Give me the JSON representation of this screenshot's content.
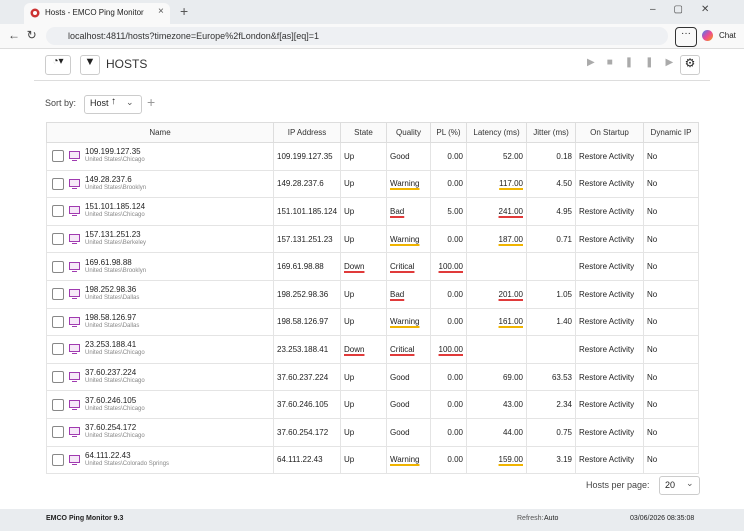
{
  "browser": {
    "tab_title": "Hosts - EMCO Ping Monitor",
    "url": "localhost:4811/hosts?timezone=Europe%2fLondon&f[as][eq]=1",
    "chat": "Chat"
  },
  "toolbar": {
    "title": "HOSTS"
  },
  "sort": {
    "label": "Sort by:",
    "field": "Host"
  },
  "table": {
    "headers": [
      "Name",
      "IP Address",
      "State",
      "Quality",
      "PL (%)",
      "Latency (ms)",
      "Jitter (ms)",
      "On Startup",
      "Dynamic IP"
    ],
    "rows": [
      {
        "name": "109.199.127.35",
        "location": "United States\\Chicago",
        "ip": "109.199.127.35",
        "state": "Up",
        "quality": "Good",
        "pl": "0.00",
        "latency": "52.00",
        "jitter": "0.18",
        "on_startup": "Restore Activity",
        "dynamic_ip": "No"
      },
      {
        "name": "149.28.237.6",
        "location": "United States\\Brooklyn",
        "ip": "149.28.237.6",
        "state": "Up",
        "quality": "Warning",
        "pl": "0.00",
        "latency": "117.00",
        "jitter": "4.50",
        "on_startup": "Restore Activity",
        "dynamic_ip": "No"
      },
      {
        "name": "151.101.185.124",
        "location": "United States\\Chicago",
        "ip": "151.101.185.124",
        "state": "Up",
        "quality": "Bad",
        "pl": "5.00",
        "latency": "241.00",
        "jitter": "4.95",
        "on_startup": "Restore Activity",
        "dynamic_ip": "No"
      },
      {
        "name": "157.131.251.23",
        "location": "United States\\Berkeley",
        "ip": "157.131.251.23",
        "state": "Up",
        "quality": "Warning",
        "pl": "0.00",
        "latency": "187.00",
        "jitter": "0.71",
        "on_startup": "Restore Activity",
        "dynamic_ip": "No"
      },
      {
        "name": "169.61.98.88",
        "location": "United States\\Brooklyn",
        "ip": "169.61.98.88",
        "state": "Down",
        "quality": "Critical",
        "pl": "100.00",
        "latency": null,
        "jitter": null,
        "on_startup": "Restore Activity",
        "dynamic_ip": "No"
      },
      {
        "name": "198.252.98.36",
        "location": "United States\\Dallas",
        "ip": "198.252.98.36",
        "state": "Up",
        "quality": "Bad",
        "pl": "0.00",
        "latency": "201.00",
        "jitter": "1.05",
        "on_startup": "Restore Activity",
        "dynamic_ip": "No"
      },
      {
        "name": "198.58.126.97",
        "location": "United States\\Dallas",
        "ip": "198.58.126.97",
        "state": "Up",
        "quality": "Warning",
        "pl": "0.00",
        "latency": "161.00",
        "jitter": "1.40",
        "on_startup": "Restore Activity",
        "dynamic_ip": "No"
      },
      {
        "name": "23.253.188.41",
        "location": "United States\\Chicago",
        "ip": "23.253.188.41",
        "state": "Down",
        "quality": "Critical",
        "pl": "100.00",
        "latency": null,
        "jitter": null,
        "on_startup": "Restore Activity",
        "dynamic_ip": "No"
      },
      {
        "name": "37.60.237.224",
        "location": "United States\\Chicago",
        "ip": "37.60.237.224",
        "state": "Up",
        "quality": "Good",
        "pl": "0.00",
        "latency": "69.00",
        "jitter": "63.53",
        "on_startup": "Restore Activity",
        "dynamic_ip": "No"
      },
      {
        "name": "37.60.246.105",
        "location": "United States\\Chicago",
        "ip": "37.60.246.105",
        "state": "Up",
        "quality": "Good",
        "pl": "0.00",
        "latency": "43.00",
        "jitter": "2.34",
        "on_startup": "Restore Activity",
        "dynamic_ip": "No"
      },
      {
        "name": "37.60.254.172",
        "location": "United States\\Chicago",
        "ip": "37.60.254.172",
        "state": "Up",
        "quality": "Good",
        "pl": "0.00",
        "latency": "44.00",
        "jitter": "0.75",
        "on_startup": "Restore Activity",
        "dynamic_ip": "No"
      },
      {
        "name": "64.111.22.43",
        "location": "United States\\Colorado Springs",
        "ip": "64.111.22.43",
        "state": "Up",
        "quality": "Warning",
        "pl": "0.00",
        "latency": "159.00",
        "jitter": "3.19",
        "on_startup": "Restore Activity",
        "dynamic_ip": "No"
      }
    ]
  },
  "pagination": {
    "label": "Hosts per page:",
    "value": "20"
  },
  "status_bar": {
    "app": "EMCO Ping Monitor 9.3",
    "refresh_label": "Refresh:",
    "refresh_value": "Auto",
    "datetime": "03/06/2026 08:35:08"
  }
}
